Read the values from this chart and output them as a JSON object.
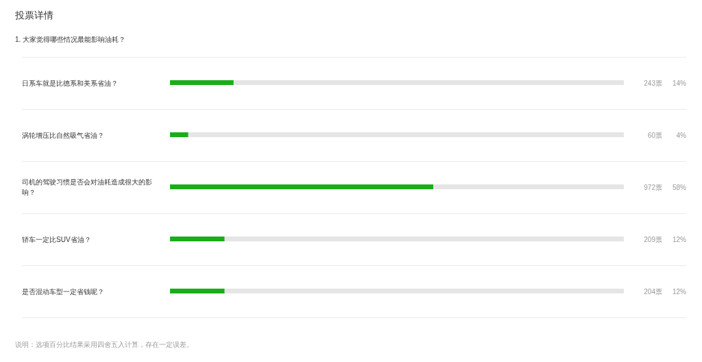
{
  "chart_data": {
    "type": "bar",
    "orientation": "horizontal",
    "title": "投票详情",
    "subtitle": "1. 大家觉得哪些情况最能影响油耗？",
    "categories": [
      "日系车就是比德系和美系省油？",
      "涡轮增压比自然吸气省油？",
      "司机的驾驶习惯是否会对油耗造成很大的影响？",
      "轿车一定比SUV省油？",
      "是否混动车型一定省钱呢？"
    ],
    "values": [
      14,
      4,
      58,
      12,
      12
    ],
    "color": "#1aad19",
    "xlim": [
      0,
      100
    ],
    "tick_labels": "y",
    "value_labels": [
      "14%",
      "4%",
      "58%",
      "12%",
      "12%"
    ],
    "annotations": [
      "243票",
      "60票",
      "972票",
      "209票",
      "204票",
      "说明：选项百分比结果采用四舍五入计算，存在一定误差。"
    ]
  }
}
